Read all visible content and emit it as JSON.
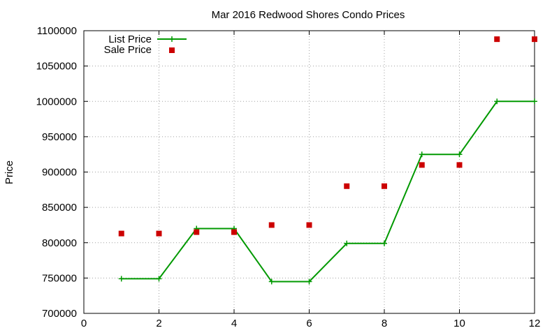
{
  "chart_data": {
    "type": "line",
    "title": "Mar 2016 Redwood Shores Condo Prices",
    "xlabel": "",
    "ylabel": "Price",
    "xlim": [
      0,
      12
    ],
    "ylim": [
      700000,
      1100000
    ],
    "xticks": [
      0,
      2,
      4,
      6,
      8,
      10,
      12
    ],
    "yticks": [
      700000,
      750000,
      800000,
      850000,
      900000,
      950000,
      1000000,
      1050000,
      1100000
    ],
    "grid": true,
    "legend_position": "top-left",
    "series": [
      {
        "name": "List Price",
        "style": "line-with-plus-markers",
        "color": "#009900",
        "x": [
          1,
          2,
          3,
          4,
          5,
          6,
          7,
          8,
          9,
          10,
          11,
          12
        ],
        "y": [
          749000,
          749000,
          820000,
          820000,
          745000,
          745000,
          799000,
          799000,
          925000,
          925000,
          1000000,
          1000000
        ]
      },
      {
        "name": "Sale Price",
        "style": "square-markers",
        "color": "#cc0000",
        "x": [
          1,
          2,
          3,
          4,
          5,
          6,
          7,
          8,
          9,
          10,
          11,
          12
        ],
        "y": [
          813000,
          813000,
          815000,
          815000,
          825000,
          825000,
          880000,
          880000,
          910000,
          910000,
          1088000,
          1088000
        ]
      }
    ]
  }
}
